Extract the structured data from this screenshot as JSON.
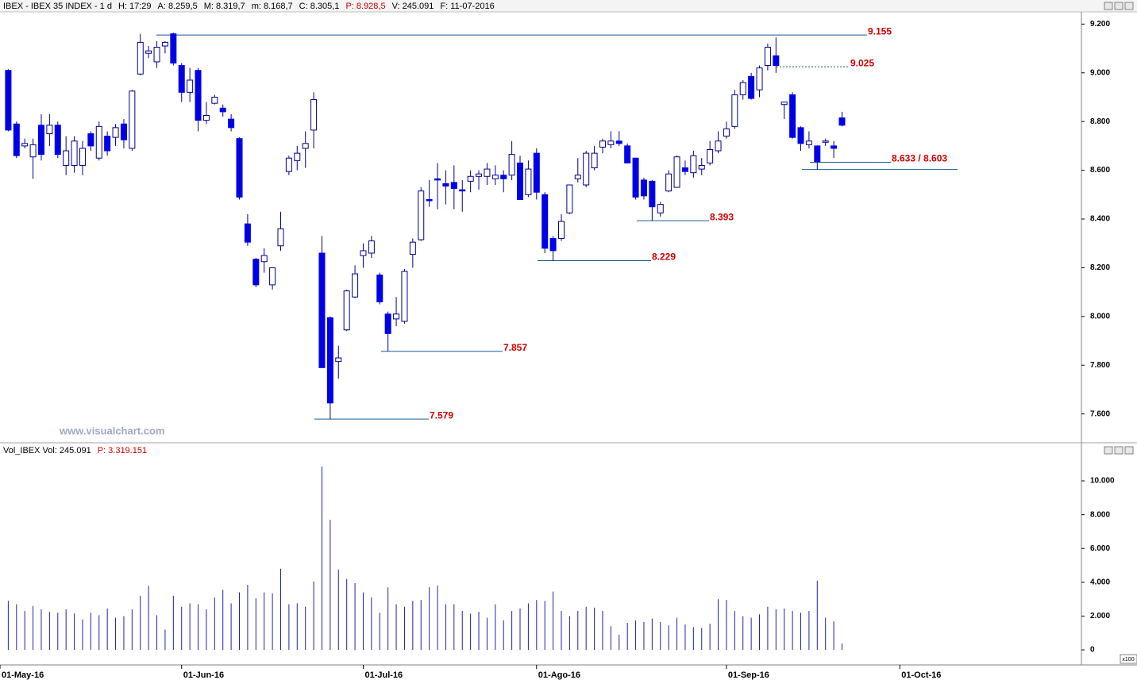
{
  "chart_data": [
    {
      "type": "candlestick",
      "header": [
        "IBEX - IBEX 35 INDEX - 1 d",
        "H: 17:29",
        "A: 8.259,5",
        "M: 8.319,7",
        "m: 8.168,7",
        "C: 8.305,1",
        "P: 8.928,5",
        "V: 245.091",
        "F: 11-07-2016"
      ],
      "watermark": "www.visualchart.com",
      "color": "#0000e6",
      "open": [
        9010,
        8790,
        8700,
        8655,
        8785,
        8750,
        8785,
        8620,
        8620,
        8620,
        8750,
        8650,
        8740,
        8735,
        8790,
        8690,
        8995,
        9080,
        9045,
        9110,
        9160,
        9030,
        8920,
        9010,
        8805,
        8875,
        8855,
        8810,
        8730,
        8380,
        8235,
        8225,
        8130,
        8290,
        8595,
        8640,
        8690,
        8765,
        8260,
        7995,
        7815,
        7945,
        8080,
        8250,
        8260,
        8170,
        8010,
        7990,
        7980,
        8255,
        8315,
        8480,
        8565,
        8545,
        8550,
        8520,
        8555,
        8575,
        8575,
        8565,
        8580,
        8580,
        8630,
        8500,
        8670,
        8500,
        8320,
        8320,
        8425,
        8565,
        8540,
        8610,
        8695,
        8705,
        8720,
        8700,
        8650,
        8560,
        8555,
        8425,
        8515,
        8530,
        8610,
        8590,
        8605,
        8630,
        8680,
        8740,
        8780,
        8910,
        8985,
        8930,
        9030,
        9070,
        8870,
        8910,
        8775,
        8705,
        8700,
        8715,
        8700,
        8815
      ],
      "high": [
        9015,
        8800,
        8730,
        8730,
        8830,
        8830,
        8800,
        8740,
        8740,
        8720,
        8760,
        8800,
        8760,
        8790,
        8810,
        8930,
        9160,
        9110,
        9130,
        9130,
        9165,
        9040,
        9020,
        9020,
        8880,
        8910,
        8870,
        8830,
        8735,
        8420,
        8240,
        8280,
        8200,
        8430,
        8660,
        8700,
        8760,
        8920,
        8330,
        8000,
        7880,
        8110,
        8210,
        8300,
        8330,
        8180,
        8020,
        8080,
        8195,
        8320,
        8530,
        8560,
        8630,
        8600,
        8620,
        8560,
        8600,
        8600,
        8630,
        8620,
        8600,
        8720,
        8660,
        8640,
        8690,
        8510,
        8330,
        8420,
        8540,
        8650,
        8680,
        8700,
        8730,
        8760,
        8760,
        8710,
        8650,
        8570,
        8560,
        8470,
        8600,
        8660,
        8640,
        8680,
        8650,
        8720,
        8760,
        8800,
        8930,
        8970,
        9000,
        9030,
        9120,
        9145,
        8880,
        8920,
        8780,
        8760,
        8700,
        8730,
        8720,
        8840
      ],
      "low": [
        8760,
        8650,
        8690,
        8565,
        8640,
        8700,
        8650,
        8580,
        8590,
        8580,
        8680,
        8640,
        8660,
        8700,
        8690,
        8680,
        8990,
        9060,
        9020,
        9080,
        9030,
        8880,
        8880,
        8760,
        8790,
        8870,
        8820,
        8760,
        8480,
        8290,
        8120,
        8180,
        8110,
        8270,
        8580,
        8600,
        8610,
        8690,
        7790,
        7579,
        7745,
        7940,
        8075,
        8200,
        8240,
        8050,
        7857,
        7960,
        7970,
        8200,
        8310,
        8450,
        8440,
        8460,
        8440,
        8430,
        8510,
        8520,
        8540,
        8540,
        8510,
        8560,
        8480,
        8490,
        8480,
        8260,
        8229,
        8310,
        8420,
        8550,
        8530,
        8600,
        8670,
        8690,
        8700,
        8630,
        8480,
        8480,
        8393,
        8410,
        8510,
        8530,
        8580,
        8570,
        8580,
        8620,
        8670,
        8730,
        8770,
        8890,
        8890,
        8900,
        9010,
        9000,
        8810,
        8730,
        8680,
        8690,
        8603,
        8700,
        8650,
        8780
      ],
      "close": [
        8765,
        8660,
        8710,
        8705,
        8665,
        8785,
        8665,
        8680,
        8720,
        8690,
        8700,
        8780,
        8680,
        8775,
        8725,
        8925,
        9125,
        9090,
        9105,
        9125,
        9040,
        8920,
        8970,
        8805,
        8825,
        8900,
        8840,
        8775,
        8490,
        8305,
        8130,
        8250,
        8200,
        8360,
        8650,
        8670,
        8710,
        8890,
        7790,
        7645,
        7830,
        8105,
        8175,
        8270,
        8310,
        8060,
        7930,
        8010,
        8185,
        8305,
        8515,
        8475,
        8560,
        8535,
        8525,
        8515,
        8575,
        8585,
        8605,
        8580,
        8565,
        8665,
        8480,
        8605,
        8510,
        8280,
        8270,
        8390,
        8540,
        8580,
        8670,
        8670,
        8720,
        8720,
        8710,
        8630,
        8490,
        8495,
        8450,
        8460,
        8585,
        8655,
        8595,
        8660,
        8620,
        8685,
        8720,
        8770,
        8910,
        8960,
        8895,
        9020,
        9105,
        9030,
        8880,
        8735,
        8710,
        8720,
        8635,
        8720,
        8690,
        8785
      ],
      "ylim": [
        7485,
        9250
      ],
      "yticks": [
        {
          "value": 9200,
          "label": "9.200"
        },
        {
          "value": 9000,
          "label": "9.000"
        },
        {
          "value": 8800,
          "label": "8.800"
        },
        {
          "value": 8600,
          "label": "8.600"
        },
        {
          "value": 8400,
          "label": "8.400"
        },
        {
          "value": 8200,
          "label": "8.200"
        },
        {
          "value": 8000,
          "label": "8.000"
        },
        {
          "value": 7800,
          "label": "7.800"
        },
        {
          "value": 7600,
          "label": "7.600"
        }
      ],
      "annotations": [
        {
          "values": [
            9155
          ],
          "label": "9.155",
          "style": "solid"
        },
        {
          "values": [
            9025
          ],
          "label": "9.025",
          "style": "dotted"
        },
        {
          "values": [
            8633,
            8603
          ],
          "label": "8.633 / 8.603",
          "style": "solid"
        },
        {
          "values": [
            8393
          ],
          "label": "8.393",
          "style": "solid"
        },
        {
          "values": [
            8229
          ],
          "label": "8.229",
          "style": "solid"
        },
        {
          "values": [
            7857
          ],
          "label": "7.857",
          "style": "solid"
        },
        {
          "values": [
            7579
          ],
          "label": "7.579",
          "style": "solid"
        }
      ]
    },
    {
      "type": "bar",
      "header": [
        "Vol_IBEX Vol: 245.091",
        "P: 3.319.151"
      ],
      "unit_note": "x100",
      "color": "#2020b0",
      "values": [
        2900,
        2700,
        2300,
        2600,
        2400,
        2250,
        2200,
        2400,
        2150,
        1800,
        2200,
        2050,
        2450,
        1900,
        2000,
        2400,
        3200,
        3800,
        2050,
        1200,
        3200,
        2550,
        2750,
        2700,
        2400,
        3100,
        3550,
        2750,
        3400,
        3850,
        3050,
        3400,
        3350,
        4800,
        2700,
        2750,
        2550,
        4050,
        10850,
        7700,
        4750,
        4200,
        3950,
        3400,
        3100,
        2200,
        3700,
        2700,
        2550,
        2900,
        2950,
        3700,
        3800,
        2700,
        2700,
        2300,
        2150,
        2250,
        1900,
        2700,
        1750,
        2300,
        2450,
        2750,
        2950,
        2900,
        3450,
        2300,
        2000,
        2300,
        2550,
        2500,
        2300,
        1400,
        900,
        1600,
        1750,
        1650,
        1850,
        1650,
        1450,
        1900,
        1500,
        1350,
        1300,
        1550,
        3000,
        2950,
        2300,
        2000,
        1900,
        2100,
        2550,
        2400,
        2450,
        2300,
        2200,
        2300,
        4100,
        1900,
        1700,
        380
      ],
      "ylim": [
        -890,
        11410
      ],
      "yticks": [
        {
          "value": 10000,
          "label": "10.000"
        },
        {
          "value": 8000,
          "label": "8.000"
        },
        {
          "value": 6000,
          "label": "6.000"
        },
        {
          "value": 4000,
          "label": "4.000"
        },
        {
          "value": 2000,
          "label": "2.000"
        },
        0
      ],
      "xlim": [
        -1,
        130
      ],
      "xticks": [
        {
          "value": -1,
          "label": "01-May-16"
        },
        {
          "value": 21,
          "label": "01-Jun-16"
        },
        {
          "value": 43,
          "label": "01-Jul-16"
        },
        {
          "value": 64,
          "label": "01-Ago-16"
        },
        {
          "value": 87,
          "label": "01-Sep-16"
        },
        {
          "value": 108,
          "label": "01-Oct-16"
        }
      ]
    }
  ]
}
